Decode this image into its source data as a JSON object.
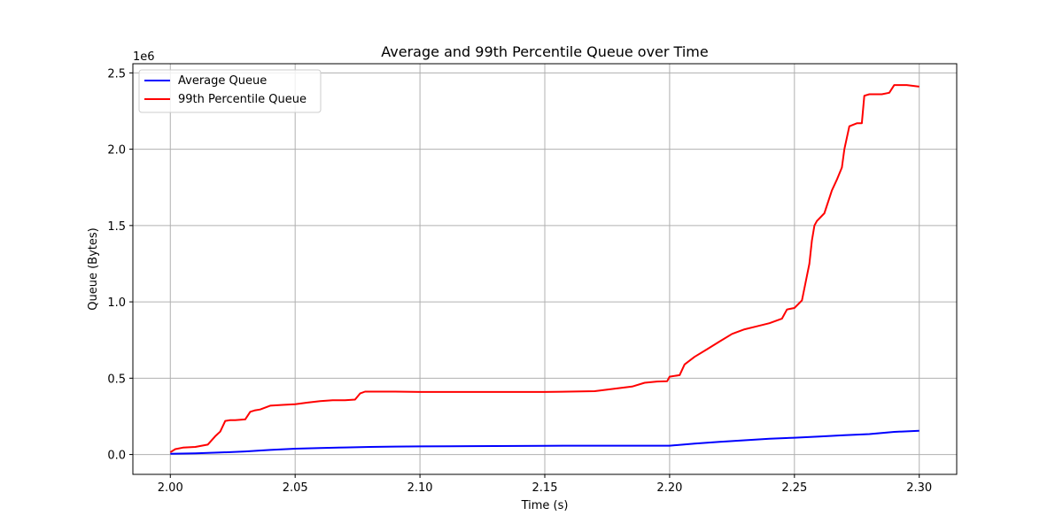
{
  "chart_data": {
    "type": "line",
    "title": "Average and 99th Percentile Queue over Time",
    "xlabel": "Time (s)",
    "ylabel": "Queue (Bytes)",
    "y_offset_label": "1e6",
    "xlim": [
      1.985,
      2.315
    ],
    "ylim": [
      -130000,
      2560000
    ],
    "x_ticks": [
      2.0,
      2.05,
      2.1,
      2.15,
      2.2,
      2.25,
      2.3
    ],
    "x_tick_labels": [
      "2.00",
      "2.05",
      "2.10",
      "2.15",
      "2.20",
      "2.25",
      "2.30"
    ],
    "y_ticks": [
      0,
      500000,
      1000000,
      1500000,
      2000000,
      2500000
    ],
    "y_tick_labels": [
      "0.0",
      "0.5",
      "1.0",
      "1.5",
      "2.0",
      "2.5"
    ],
    "grid": true,
    "legend_position": "top-left",
    "series": [
      {
        "name": "Average Queue",
        "color": "#0000ff",
        "x": [
          2.0,
          2.01,
          2.02,
          2.03,
          2.04,
          2.05,
          2.06,
          2.07,
          2.08,
          2.09,
          2.1,
          2.12,
          2.15,
          2.18,
          2.2,
          2.21,
          2.22,
          2.23,
          2.24,
          2.25,
          2.26,
          2.27,
          2.28,
          2.29,
          2.3
        ],
        "y": [
          5000,
          8000,
          13000,
          20000,
          30000,
          38000,
          43000,
          46000,
          50000,
          52000,
          53000,
          55000,
          57000,
          58000,
          58000,
          72000,
          83000,
          93000,
          103000,
          110000,
          118000,
          127000,
          134000,
          148000,
          156000
        ]
      },
      {
        "name": "99th Percentile Queue",
        "color": "#ff0000",
        "x": [
          2.0,
          2.002,
          2.005,
          2.01,
          2.015,
          2.018,
          2.02,
          2.022,
          2.024,
          2.026,
          2.03,
          2.032,
          2.034,
          2.036,
          2.04,
          2.045,
          2.05,
          2.055,
          2.06,
          2.065,
          2.07,
          2.074,
          2.076,
          2.078,
          2.08,
          2.09,
          2.1,
          2.12,
          2.15,
          2.17,
          2.18,
          2.185,
          2.19,
          2.195,
          2.199,
          2.2,
          2.204,
          2.206,
          2.21,
          2.215,
          2.22,
          2.225,
          2.23,
          2.235,
          2.24,
          2.245,
          2.247,
          2.25,
          2.253,
          2.255,
          2.256,
          2.257,
          2.258,
          2.259,
          2.262,
          2.265,
          2.267,
          2.269,
          2.27,
          2.272,
          2.275,
          2.277,
          2.278,
          2.28,
          2.285,
          2.288,
          2.29,
          2.295,
          2.3
        ],
        "y": [
          15000,
          35000,
          45000,
          50000,
          65000,
          120000,
          150000,
          220000,
          225000,
          225000,
          230000,
          280000,
          290000,
          295000,
          320000,
          325000,
          330000,
          340000,
          350000,
          355000,
          355000,
          360000,
          400000,
          412000,
          412000,
          412000,
          410000,
          410000,
          410000,
          415000,
          435000,
          445000,
          470000,
          478000,
          480000,
          510000,
          520000,
          590000,
          640000,
          690000,
          740000,
          790000,
          820000,
          840000,
          860000,
          890000,
          950000,
          960000,
          1010000,
          1170000,
          1250000,
          1400000,
          1500000,
          1530000,
          1580000,
          1730000,
          1800000,
          1880000,
          2000000,
          2150000,
          2170000,
          2170000,
          2350000,
          2360000,
          2360000,
          2370000,
          2420000,
          2420000,
          2410000
        ]
      }
    ]
  }
}
